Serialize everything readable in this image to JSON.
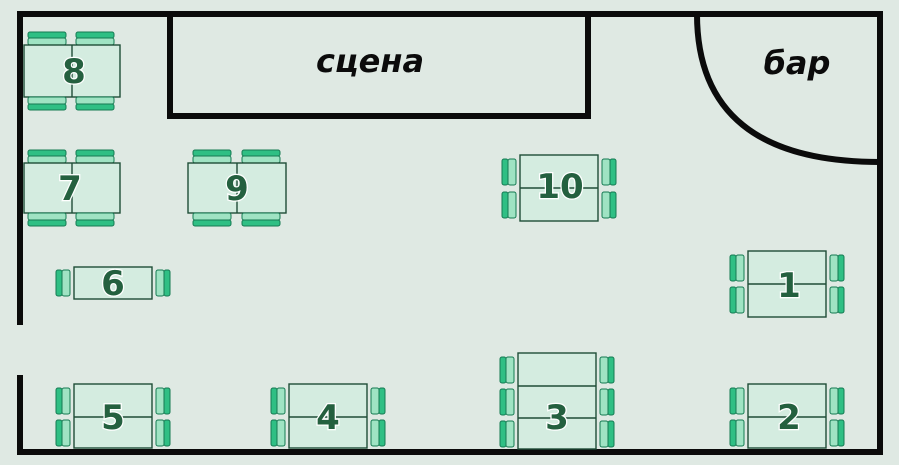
{
  "stage": {
    "label": "сцена"
  },
  "bar": {
    "label": "бар"
  },
  "tables": [
    {
      "id": "8",
      "label": "8"
    },
    {
      "id": "7",
      "label": "7"
    },
    {
      "id": "9",
      "label": "9"
    },
    {
      "id": "10",
      "label": "10"
    },
    {
      "id": "6",
      "label": "6"
    },
    {
      "id": "1",
      "label": "1"
    },
    {
      "id": "5",
      "label": "5"
    },
    {
      "id": "4",
      "label": "4"
    },
    {
      "id": "3",
      "label": "3"
    },
    {
      "id": "2",
      "label": "2"
    }
  ],
  "colors": {
    "floor": "#dfe9e3",
    "walls": "#0b0b0b",
    "chair": "#2fbf84",
    "table": "#d4ece0",
    "number": "#24603f"
  }
}
